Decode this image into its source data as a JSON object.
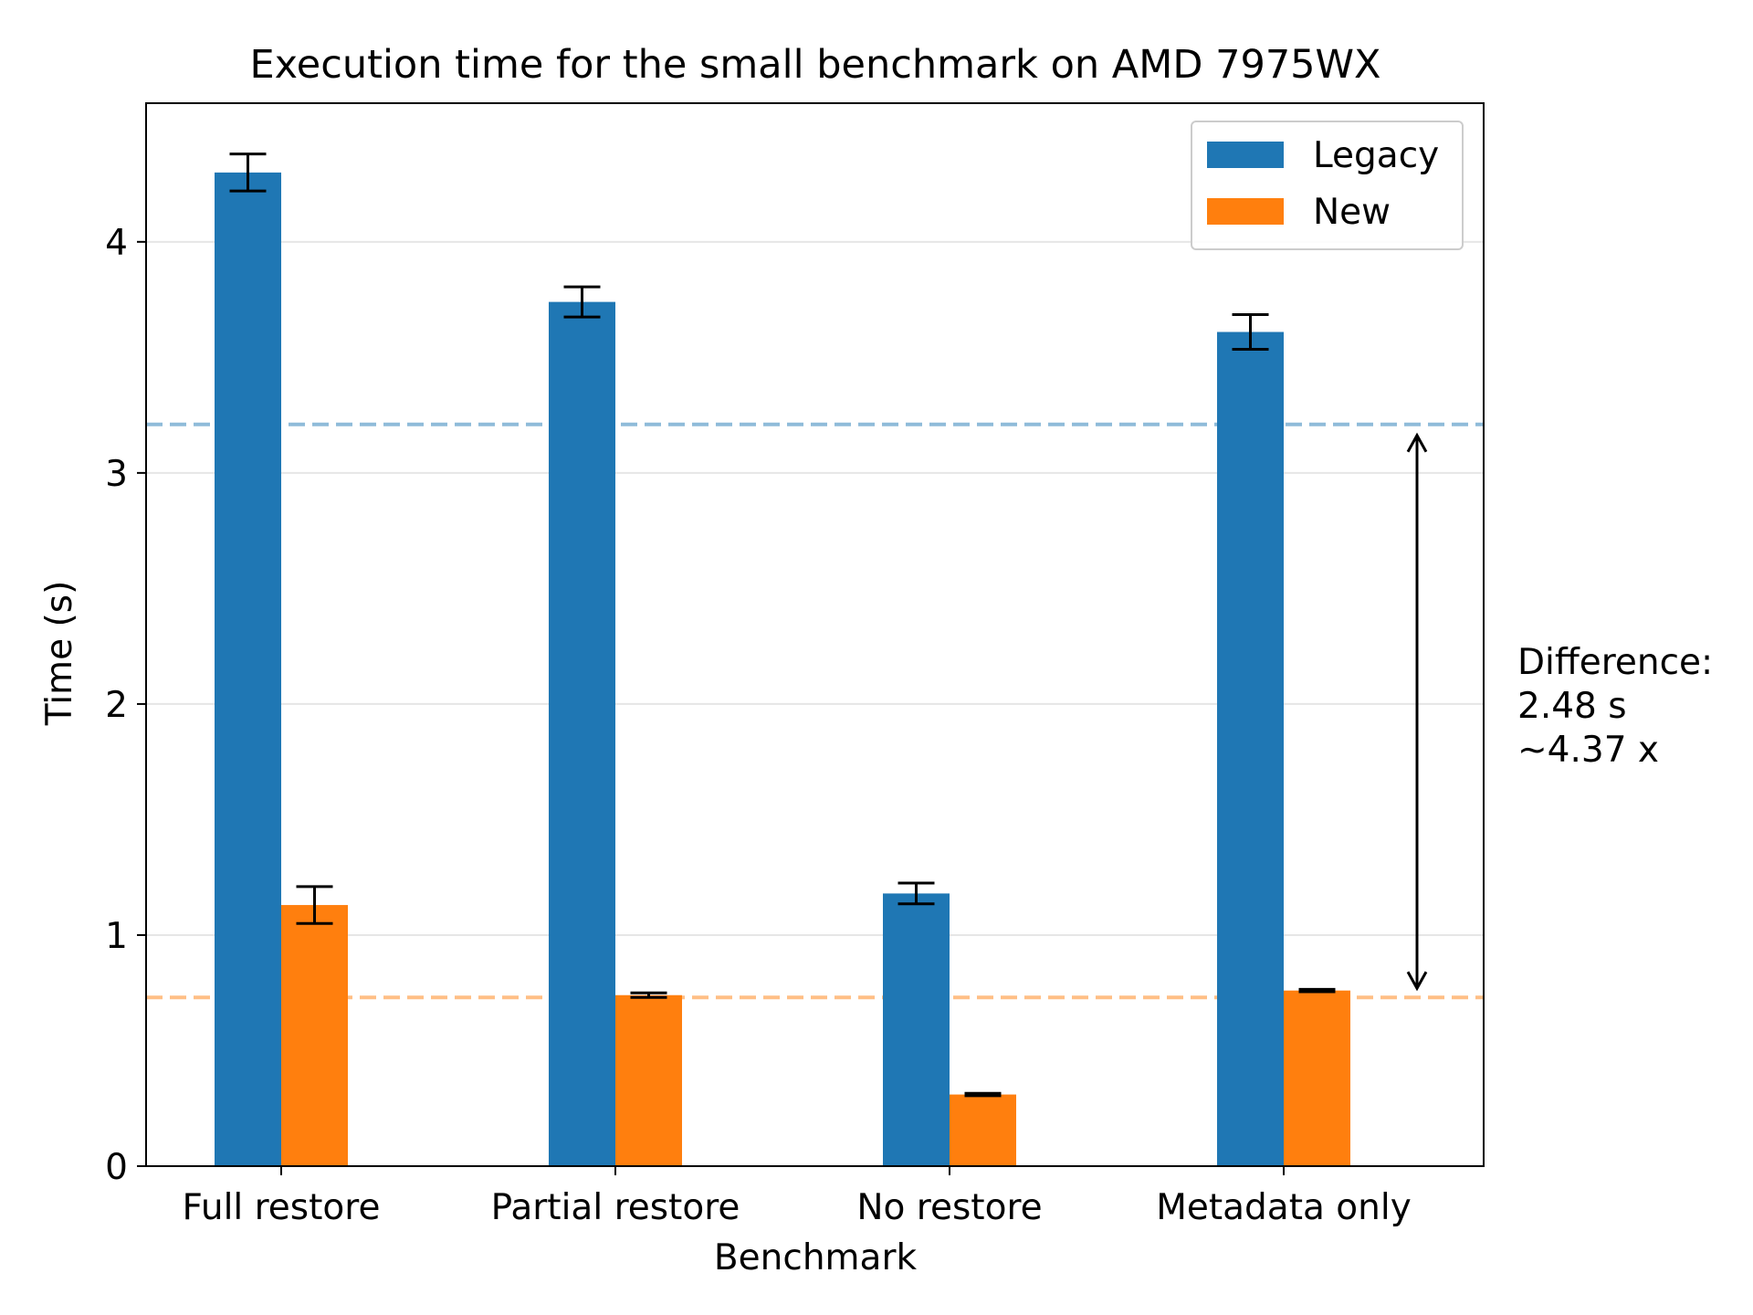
{
  "chart_data": {
    "type": "bar",
    "title": "Execution time for the small benchmark on AMD 7975WX",
    "xlabel": "Benchmark",
    "ylabel": "Time (s)",
    "ylim": [
      0,
      4.6
    ],
    "yticks": [
      0,
      1,
      2,
      3,
      4
    ],
    "grid": "y",
    "legend_position": "top-right",
    "categories": [
      "Full restore",
      "Partial restore",
      "No restore",
      "Metadata only"
    ],
    "series": [
      {
        "name": "Legacy",
        "color": "#1f77b4",
        "values": [
          4.3,
          3.74,
          1.18,
          3.61
        ],
        "errors": [
          0.08,
          0.065,
          0.045,
          0.075
        ]
      },
      {
        "name": "New",
        "color": "#ff7f0e",
        "values": [
          1.13,
          0.74,
          0.31,
          0.76
        ],
        "errors": [
          0.08,
          0.01,
          0.005,
          0.005
        ]
      }
    ],
    "reference_lines": [
      {
        "value": 3.21,
        "color": "#1f77b4",
        "style": "dashed"
      },
      {
        "value": 0.73,
        "color": "#ff7f0e",
        "style": "dashed"
      }
    ],
    "annotation": {
      "lines": [
        "Difference:",
        "2.48 s",
        "~4.37 x"
      ],
      "arrow_from": 3.21,
      "arrow_to": 0.73
    }
  }
}
